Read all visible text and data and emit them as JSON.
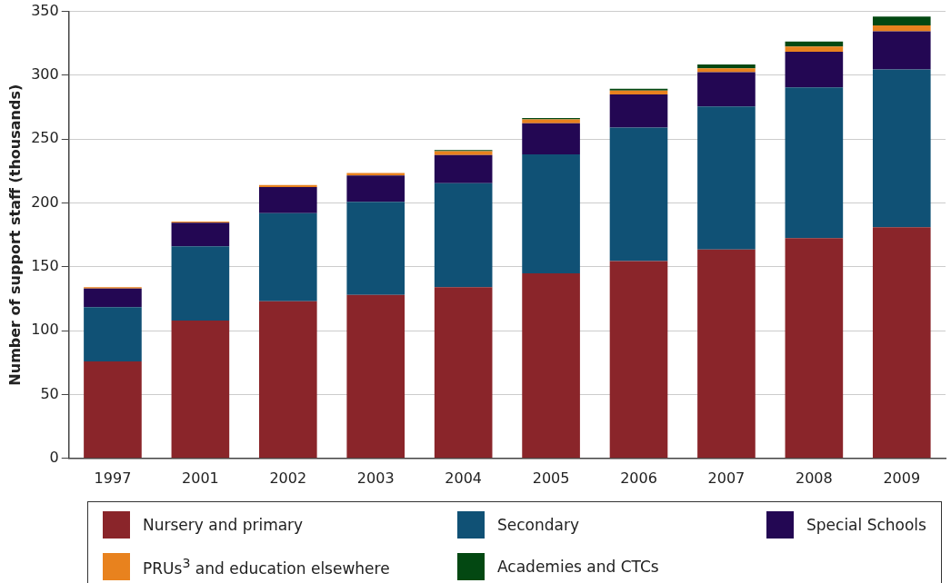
{
  "chart_data": {
    "type": "bar",
    "stacked": true,
    "ylabel": "Number of support staff (thousands)",
    "categories": [
      "1997",
      "2001",
      "2002",
      "2003",
      "2004",
      "2005",
      "2006",
      "2007",
      "2008",
      "2009"
    ],
    "series": [
      {
        "name": "Nursery and primary",
        "color": "#8a252a",
        "values": [
          76,
          108,
          123,
          128,
          134,
          145,
          154.5,
          163.5,
          172.5,
          181
        ]
      },
      {
        "name": "Secondary",
        "color": "#105175",
        "values": [
          42.5,
          58,
          69,
          73,
          81.5,
          93,
          104.5,
          112,
          118,
          123.5
        ]
      },
      {
        "name": "Special Schools",
        "color": "#230753",
        "values": [
          14.5,
          18.5,
          20.5,
          20.5,
          22,
          24.5,
          26,
          27,
          28,
          30
        ]
      },
      {
        "name": "PRUs$^{3}$ and education elsewhere",
        "color": "#e8821e",
        "values": [
          1,
          1,
          1.5,
          2,
          3,
          3,
          3,
          3,
          4,
          4.5
        ]
      },
      {
        "name": "Academies and CTCs",
        "color": "#034812",
        "values": [
          null,
          null,
          null,
          null,
          1,
          1,
          1.5,
          3,
          4,
          7
        ]
      }
    ],
    "ylim": [
      0,
      350
    ],
    "yticks": [
      0,
      50,
      100,
      150,
      200,
      250,
      300,
      350
    ],
    "grid": "y",
    "legend": "bottom"
  }
}
